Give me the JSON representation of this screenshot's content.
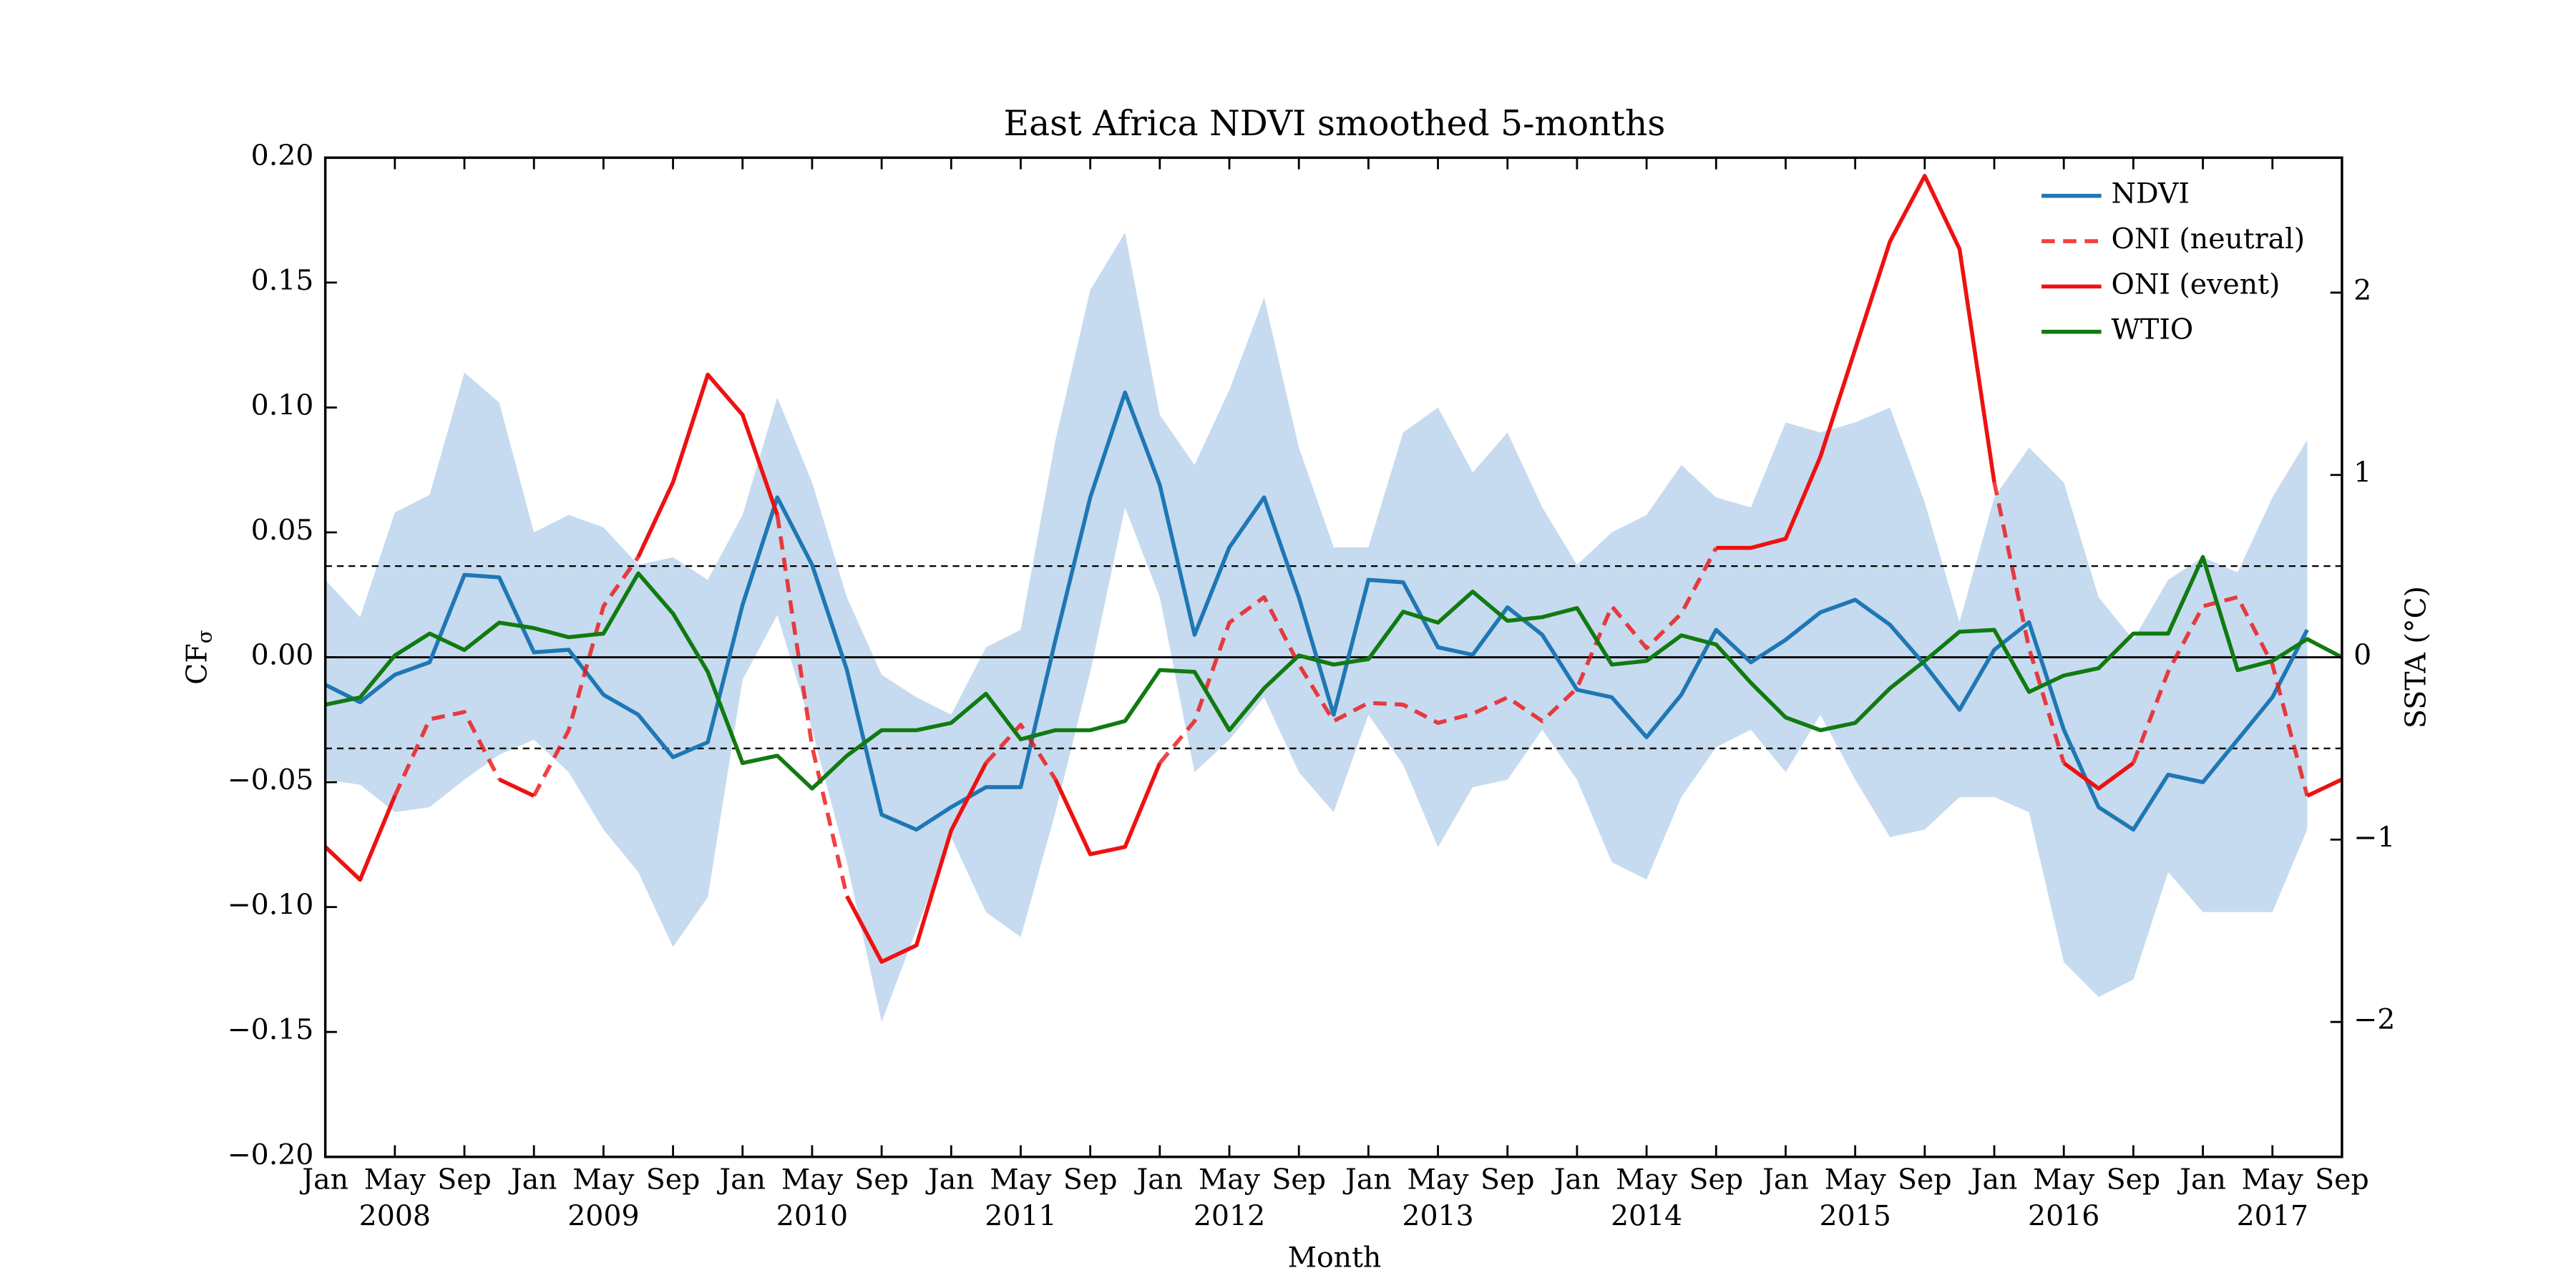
{
  "chart_data": {
    "type": "line",
    "title": "East Africa NDVI smoothed 5-months",
    "xlabel": "Month",
    "ylabel": {
      "text": "CF",
      "subscript": "σ"
    },
    "y2label": "SSTA (°C)",
    "xlim": [
      "2008-01",
      "2017-09"
    ],
    "ylim": [
      -0.2,
      0.2
    ],
    "y2lim": [
      -2.74,
      2.74
    ],
    "yticks": [
      {
        "value": -0.2,
        "label": "−0.20"
      },
      {
        "value": -0.15,
        "label": "−0.15"
      },
      {
        "value": -0.1,
        "label": "−0.10"
      },
      {
        "value": -0.05,
        "label": "−0.05"
      },
      {
        "value": 0,
        "label": "0.00"
      },
      {
        "value": 0.05,
        "label": "0.05"
      },
      {
        "value": 0.1,
        "label": "0.10"
      },
      {
        "value": 0.15,
        "label": "0.15"
      },
      {
        "value": 0.2,
        "label": "0.20"
      }
    ],
    "y2ticks": [
      {
        "value": -2,
        "label": "−2"
      },
      {
        "value": -1,
        "label": "−1"
      },
      0,
      1,
      2
    ],
    "thresholds": [
      -0.5,
      0.5
    ],
    "xticks": [
      {
        "value": "2008-01",
        "label": "Jan"
      },
      {
        "value": "2008-05",
        "label": "May"
      },
      {
        "value": "2008-09",
        "label": "Sep"
      },
      {
        "value": "2009-01",
        "label": "Jan"
      },
      {
        "value": "2009-05",
        "label": "May"
      },
      {
        "value": "2009-09",
        "label": "Sep"
      },
      {
        "value": "2010-01",
        "label": "Jan"
      },
      {
        "value": "2010-05",
        "label": "May"
      },
      {
        "value": "2010-09",
        "label": "Sep"
      },
      {
        "value": "2011-01",
        "label": "Jan"
      },
      {
        "value": "2011-05",
        "label": "May"
      },
      {
        "value": "2011-09",
        "label": "Sep"
      },
      {
        "value": "2012-01",
        "label": "Jan"
      },
      {
        "value": "2012-05",
        "label": "May"
      },
      {
        "value": "2012-09",
        "label": "Sep"
      },
      {
        "value": "2013-01",
        "label": "Jan"
      },
      {
        "value": "2013-05",
        "label": "May"
      },
      {
        "value": "2013-09",
        "label": "Sep"
      },
      {
        "value": "2014-01",
        "label": "Jan"
      },
      {
        "value": "2014-05",
        "label": "May"
      },
      {
        "value": "2014-09",
        "label": "Sep"
      },
      {
        "value": "2015-01",
        "label": "Jan"
      },
      {
        "value": "2015-05",
        "label": "May"
      },
      {
        "value": "2015-09",
        "label": "Sep"
      },
      {
        "value": "2016-01",
        "label": "Jan"
      },
      {
        "value": "2016-05",
        "label": "May"
      },
      {
        "value": "2016-09",
        "label": "Sep"
      },
      {
        "value": "2017-01",
        "label": "Jan"
      },
      {
        "value": "2017-05",
        "label": "May"
      },
      {
        "value": "2017-09",
        "label": "Sep"
      }
    ],
    "years": [
      "2008",
      "2009",
      "2010",
      "2011",
      "2012",
      "2013",
      "2014",
      "2015",
      "2016",
      "2017"
    ],
    "legend": "upper right",
    "x": [
      "2008-01",
      "2008-03",
      "2008-05",
      "2008-07",
      "2008-09",
      "2008-11",
      "2009-01",
      "2009-03",
      "2009-05",
      "2009-07",
      "2009-09",
      "2009-11",
      "2010-01",
      "2010-03",
      "2010-05",
      "2010-07",
      "2010-09",
      "2010-11",
      "2011-01",
      "2011-03",
      "2011-05",
      "2011-07",
      "2011-09",
      "2011-11",
      "2012-01",
      "2012-03",
      "2012-05",
      "2012-07",
      "2012-09",
      "2012-11",
      "2013-01",
      "2013-03",
      "2013-05",
      "2013-07",
      "2013-09",
      "2013-11",
      "2014-01",
      "2014-03",
      "2014-05",
      "2014-07",
      "2014-09",
      "2014-11",
      "2015-01",
      "2015-03",
      "2015-05",
      "2015-07",
      "2015-09",
      "2015-11",
      "2016-01",
      "2016-03",
      "2016-05",
      "2016-07",
      "2016-09",
      "2016-11",
      "2017-01",
      "2017-03",
      "2017-05",
      "2017-07",
      "2017-09"
    ],
    "band": {
      "color": "#c6dbef",
      "upper": [
        0.031,
        0.016,
        0.058,
        0.065,
        0.114,
        0.102,
        0.05,
        0.057,
        0.052,
        0.037,
        0.04,
        0.031,
        0.057,
        0.104,
        0.07,
        0.024,
        -0.007,
        -0.016,
        -0.023,
        0.004,
        0.011,
        0.087,
        0.147,
        0.17,
        0.097,
        0.077,
        0.107,
        0.144,
        0.084,
        0.044,
        0.044,
        0.09,
        0.1,
        0.074,
        0.09,
        0.06,
        0.037,
        0.05,
        0.057,
        0.077,
        0.064,
        0.06,
        0.094,
        0.09,
        0.094,
        0.1,
        0.062,
        0.014,
        0.064,
        0.084,
        0.07,
        0.024,
        0.007,
        0.031,
        0.04,
        0.034,
        0.064,
        0.087,
        null
      ],
      "lower": [
        -0.049,
        -0.051,
        -0.062,
        -0.06,
        -0.049,
        -0.039,
        -0.033,
        -0.046,
        -0.069,
        -0.086,
        -0.116,
        -0.096,
        -0.009,
        0.017,
        -0.029,
        -0.082,
        -0.146,
        -0.109,
        -0.072,
        -0.102,
        -0.112,
        -0.062,
        -0.006,
        0.06,
        0.024,
        -0.046,
        -0.033,
        -0.016,
        -0.046,
        -0.062,
        -0.023,
        -0.043,
        -0.076,
        -0.052,
        -0.049,
        -0.029,
        -0.049,
        -0.082,
        -0.089,
        -0.056,
        -0.036,
        -0.029,
        -0.046,
        -0.023,
        -0.049,
        -0.072,
        -0.069,
        -0.056,
        -0.056,
        -0.062,
        -0.122,
        -0.136,
        -0.129,
        -0.086,
        -0.102,
        -0.102,
        -0.102,
        -0.069,
        null
      ]
    },
    "series": [
      {
        "name": "NDVI",
        "color": "#1f77b4",
        "axis": "y",
        "values": [
          -0.011,
          -0.018,
          -0.007,
          -0.002,
          0.033,
          0.032,
          0.002,
          0.003,
          -0.015,
          -0.023,
          -0.04,
          -0.034,
          0.021,
          0.064,
          0.037,
          -0.005,
          -0.063,
          -0.069,
          -0.06,
          -0.052,
          -0.052,
          0.007,
          0.064,
          0.106,
          0.069,
          0.009,
          0.044,
          0.064,
          0.024,
          -0.023,
          0.031,
          0.03,
          0.004,
          0.001,
          0.02,
          0.009,
          -0.013,
          -0.016,
          -0.032,
          -0.015,
          0.011,
          -0.002,
          0.007,
          0.018,
          0.023,
          0.013,
          -0.003,
          -0.021,
          0.003,
          0.014,
          -0.029,
          -0.06,
          -0.069,
          -0.047,
          -0.05,
          -0.033,
          -0.016,
          0.011,
          null
        ]
      },
      {
        "names": [
          "ONI (neutral)",
          "ONI (event)"
        ],
        "color": "#ee1111",
        "axis": "y2",
        "values": [
          -1.04,
          -1.22,
          -0.76,
          -0.34,
          -0.3,
          -0.67,
          -0.76,
          -0.4,
          0.28,
          0.55,
          0.96,
          1.55,
          1.33,
          0.78,
          -0.49,
          -1.31,
          -1.67,
          -1.58,
          -0.95,
          -0.58,
          -0.37,
          -0.67,
          -1.08,
          -1.04,
          -0.58,
          -0.35,
          0.19,
          0.33,
          -0.04,
          -0.35,
          -0.25,
          -0.26,
          -0.36,
          -0.31,
          -0.22,
          -0.35,
          -0.17,
          0.28,
          0.05,
          0.24,
          0.6,
          0.6,
          0.65,
          1.1,
          1.69,
          2.28,
          2.64,
          2.24,
          0.96,
          0.05,
          -0.58,
          -0.72,
          -0.58,
          -0.08,
          0.28,
          0.33,
          -0.04,
          -0.76,
          -0.67
        ]
      },
      {
        "name": "WTIO",
        "color": "#117a11",
        "axis": "y2",
        "values": [
          -0.26,
          -0.22,
          0.01,
          0.13,
          0.04,
          0.19,
          0.16,
          0.11,
          0.13,
          0.46,
          0.24,
          -0.08,
          -0.58,
          -0.54,
          -0.72,
          -0.54,
          -0.4,
          -0.4,
          -0.36,
          -0.2,
          -0.45,
          -0.4,
          -0.4,
          -0.35,
          -0.07,
          -0.08,
          -0.4,
          -0.17,
          0.01,
          -0.04,
          -0.01,
          0.25,
          0.19,
          0.36,
          0.2,
          0.22,
          0.27,
          -0.04,
          -0.02,
          0.12,
          0.07,
          -0.14,
          -0.33,
          -0.4,
          -0.36,
          -0.17,
          -0.02,
          0.14,
          0.15,
          -0.19,
          -0.1,
          -0.06,
          0.13,
          0.13,
          0.55,
          -0.07,
          -0.02,
          0.1,
          0
        ]
      }
    ]
  }
}
